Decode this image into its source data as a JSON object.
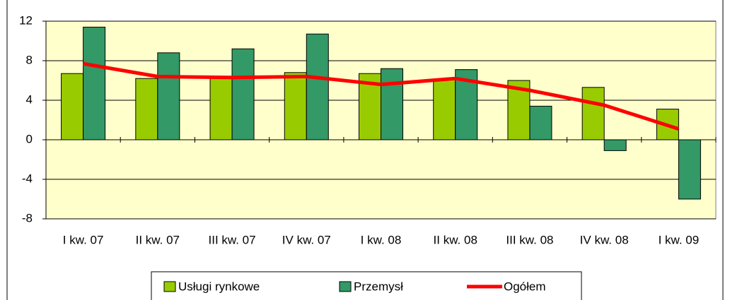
{
  "chart_data": {
    "type": "bar",
    "categories": [
      "I kw. 07",
      "II kw. 07",
      "III kw. 07",
      "IV kw. 07",
      "I kw. 08",
      "II kw. 08",
      "III kw. 08",
      "IV kw. 08",
      "I kw. 09"
    ],
    "series": [
      {
        "name": "Usługi rynkowe",
        "color": "#99cc00",
        "type": "bar",
        "values": [
          6.7,
          6.2,
          6.3,
          6.8,
          6.7,
          6.1,
          6.0,
          5.3,
          3.1
        ]
      },
      {
        "name": "Przemysł",
        "color": "#339966",
        "type": "bar",
        "values": [
          11.4,
          8.8,
          9.2,
          10.7,
          7.2,
          7.1,
          3.4,
          -1.1,
          -6.0
        ]
      },
      {
        "name": "Ogółem",
        "color": "#ff0000",
        "type": "line",
        "values": [
          7.7,
          6.4,
          6.3,
          6.4,
          5.6,
          6.2,
          5.0,
          3.5,
          1.1
        ]
      }
    ],
    "ylim": [
      -8,
      12
    ],
    "yticks": [
      -8,
      -4,
      0,
      4,
      8,
      12
    ],
    "grid": true,
    "legend": "bottom"
  }
}
